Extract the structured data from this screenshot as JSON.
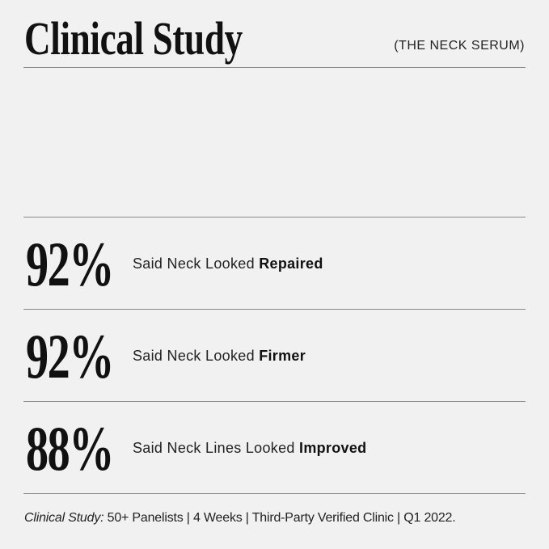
{
  "header": {
    "title": "Clinical Study",
    "subtitle": "(THE NECK SERUM)"
  },
  "stats": [
    {
      "value": "92%",
      "label_prefix": "Said Neck Looked ",
      "label_bold": "Repaired"
    },
    {
      "value": "92%",
      "label_prefix": "Said Neck Looked ",
      "label_bold": "Firmer"
    },
    {
      "value": "88%",
      "label_prefix": "Said Neck Lines Looked ",
      "label_bold": "Improved"
    }
  ],
  "footer": {
    "lead": "Clinical Study:",
    "text": " 50+ Panelists | 4 Weeks | Third-Party Verified Clinic | Q1 2022."
  },
  "colors": {
    "background": "#f1f1f1",
    "text": "#111111",
    "rule": "#8a8a8a"
  }
}
